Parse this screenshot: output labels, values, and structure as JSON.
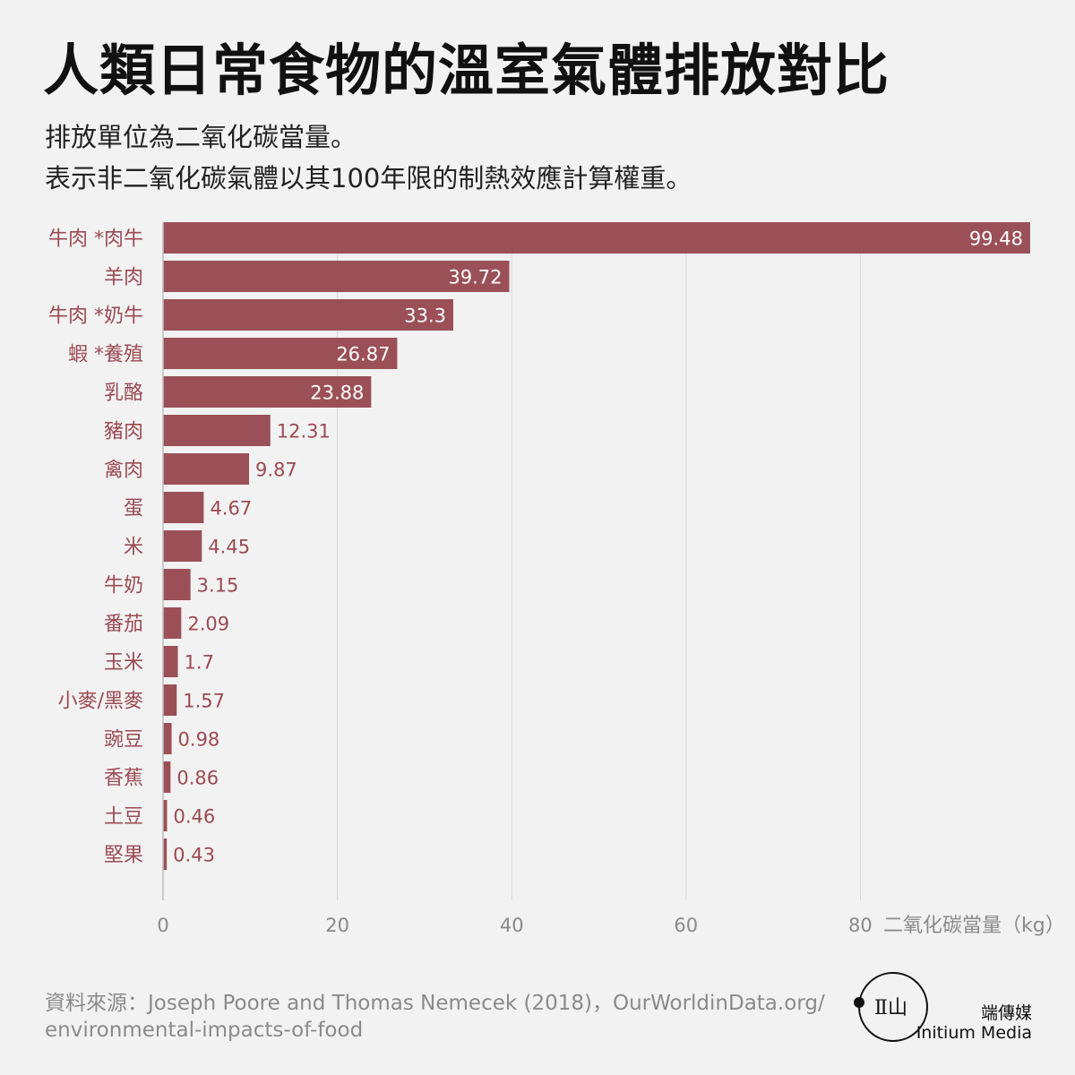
{
  "header": {
    "title": "人類日常食物的溫室氣體排放對比",
    "subtitle_line1": "排放單位為二氧化碳當量。",
    "subtitle_line2": "表示非二氧化碳氣體以其100年限的制熱效應計算權重。"
  },
  "footer": {
    "source_line1": "資料來源：Joseph Poore and Thomas Nemecek (2018)，OurWorldinData.org/",
    "source_line2": "environmental-impacts-of-food",
    "brand_zh": "端傳媒",
    "brand_en": "Initium Media",
    "logo_mark": "Ⅱ山"
  },
  "colors": {
    "bar": "#9b5057",
    "category_label": "#9b4a52",
    "value_inside": "#ffffff",
    "value_outside": "#9b4a52",
    "grid": "#d8d8d8",
    "axis_text": "#8a8a8a"
  },
  "chart_data": {
    "type": "bar",
    "orientation": "horizontal",
    "categories": [
      "牛肉 *肉牛",
      "羊肉",
      "牛肉 *奶牛",
      "蝦 *養殖",
      "乳酪",
      "豬肉",
      "禽肉",
      "蛋",
      "米",
      "牛奶",
      "番茄",
      "玉米",
      "小麥/黑麥",
      "豌豆",
      "香蕉",
      "土豆",
      "堅果"
    ],
    "values": [
      99.48,
      39.72,
      33.3,
      26.87,
      23.88,
      12.31,
      9.87,
      4.67,
      4.45,
      3.15,
      2.09,
      1.7,
      1.57,
      0.98,
      0.86,
      0.46,
      0.43
    ],
    "value_labels": [
      "99.48",
      "39.72",
      "33.3",
      "26.87",
      "23.88",
      "12.31",
      "9.87",
      "4.67",
      "4.45",
      "3.15",
      "2.09",
      "1.7",
      "1.57",
      "0.98",
      "0.86",
      "0.46",
      "0.43"
    ],
    "xticks": [
      0,
      20,
      40,
      60,
      80
    ],
    "xtick_labels": [
      "0",
      "20",
      "40",
      "60",
      "80"
    ],
    "xlabel": "二氧化碳當量（kg）",
    "xlim": [
      0,
      100
    ],
    "grid": true,
    "legend": "none"
  }
}
